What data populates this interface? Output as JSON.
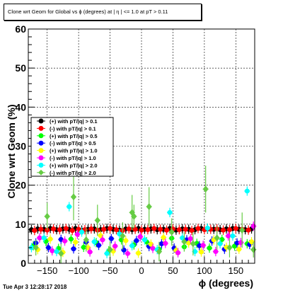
{
  "title": "Clone wrt Geom for Global vs ϕ (degrees) at | η | <= 1.0 at pT > 0.11",
  "timestamp": "Tue Apr  3 12:28:17 2018",
  "colors": {
    "black": "#000000",
    "red": "#ff0000",
    "green": "#00ff00",
    "blue": "#0000ff",
    "yellow": "#ffff00",
    "magenta": "#ff00ff",
    "cyan": "#00ffff",
    "olive": "#66cc44"
  },
  "chart_data": {
    "type": "scatter",
    "xlabel": "ϕ (degrees)",
    "ylabel": "Clone wrt Geom (%)",
    "xlim": [
      -180,
      180
    ],
    "ylim": [
      0,
      60
    ],
    "xticks": [
      -150,
      -100,
      -50,
      0,
      50,
      100,
      150
    ],
    "xtick_labels": [
      "−150",
      "−100",
      "−50",
      "0",
      "50",
      "100",
      "150"
    ],
    "yticks": [
      0,
      10,
      20,
      30,
      40,
      50,
      60
    ],
    "grid": true,
    "legend_position": "middle-left",
    "series": [
      {
        "name": "(+) with pT/|q| > 0.1",
        "color": "#000000",
        "marker": "circle",
        "x": [
          -175,
          -165,
          -155,
          -145,
          -135,
          -125,
          -115,
          -105,
          -95,
          -85,
          -75,
          -65,
          -55,
          -45,
          -35,
          -25,
          -15,
          -5,
          5,
          15,
          25,
          35,
          45,
          55,
          65,
          75,
          85,
          95,
          105,
          115,
          125,
          135,
          145,
          155,
          165,
          175
        ],
        "y": [
          8.6,
          8.8,
          8.7,
          8.9,
          8.6,
          8.8,
          8.7,
          8.9,
          8.5,
          8.7,
          8.8,
          8.6,
          8.9,
          8.7,
          8.5,
          8.8,
          8.6,
          8.9,
          8.7,
          8.8,
          8.6,
          8.7,
          8.9,
          8.5,
          8.8,
          8.7,
          8.6,
          8.9,
          8.8,
          8.7,
          8.6,
          8.8,
          8.9,
          8.7,
          8.6,
          8.8
        ]
      },
      {
        "name": "(-) with pT/|q| > 0.1",
        "color": "#ff0000",
        "marker": "circle",
        "x": [
          -170,
          -160,
          -150,
          -140,
          -130,
          -120,
          -110,
          -100,
          -90,
          -80,
          -70,
          -60,
          -50,
          -40,
          -30,
          -20,
          -10,
          0,
          10,
          20,
          30,
          40,
          50,
          60,
          70,
          80,
          90,
          100,
          110,
          120,
          130,
          140,
          150,
          160,
          170
        ],
        "y": [
          8.4,
          8.7,
          8.5,
          8.8,
          8.6,
          8.9,
          8.4,
          8.7,
          8.6,
          8.8,
          8.5,
          8.7,
          8.9,
          8.6,
          8.4,
          8.8,
          8.7,
          8.5,
          8.6,
          8.9,
          8.7,
          8.5,
          8.8,
          8.6,
          8.7,
          8.4,
          8.9,
          8.6,
          8.7,
          8.8,
          8.5,
          8.6,
          8.9,
          8.7,
          8.5
        ]
      },
      {
        "name": "(+) with pT/|q| > 0.5",
        "color": "#00ff00",
        "marker": "circle",
        "x": [
          -172,
          -152,
          -132,
          -112,
          -92,
          -72,
          -52,
          -32,
          -12,
          8,
          28,
          48,
          68,
          88,
          108,
          128,
          148,
          168
        ],
        "y": [
          4.5,
          5.6,
          3.8,
          6.2,
          4.1,
          5.3,
          3.2,
          6.0,
          4.7,
          5.5,
          3.6,
          6.4,
          4.2,
          5.1,
          3.9,
          6.1,
          4.4,
          5.0
        ]
      },
      {
        "name": "(-) with pT/|q| > 0.5",
        "color": "#0000ff",
        "marker": "circle",
        "x": [
          -168,
          -148,
          -128,
          -108,
          -88,
          -68,
          -48,
          -28,
          -8,
          12,
          32,
          52,
          72,
          92,
          112,
          132,
          152,
          172
        ],
        "y": [
          5.2,
          4.0,
          6.1,
          3.7,
          5.4,
          4.6,
          6.3,
          3.4,
          5.8,
          4.3,
          5.0,
          3.9,
          6.0,
          4.5,
          5.7,
          3.6,
          5.2,
          4.8
        ]
      },
      {
        "name": "(+) with pT/|q| > 1.0",
        "color": "#ffff00",
        "marker": "circle",
        "x": [
          -165,
          -145,
          -125,
          -105,
          -85,
          -65,
          -45,
          -25,
          -5,
          15,
          35,
          55,
          75,
          95,
          115,
          135,
          155,
          175
        ],
        "y": [
          3.5,
          6.2,
          2.8,
          5.4,
          4.0,
          7.1,
          3.1,
          5.8,
          2.6,
          4.9,
          6.6,
          3.3,
          5.2,
          2.9,
          6.0,
          4.1,
          3.6,
          5.5
        ]
      },
      {
        "name": "(-) with pT/|q| > 1.0",
        "color": "#ff00ff",
        "marker": "circle",
        "x": [
          -162,
          -142,
          -122,
          -102,
          -82,
          -62,
          -42,
          -22,
          -2,
          18,
          38,
          58,
          78,
          98,
          118,
          138,
          158,
          178
        ],
        "y": [
          6.5,
          3.2,
          5.7,
          7.4,
          2.9,
          6.0,
          4.4,
          2.5,
          6.8,
          3.8,
          5.1,
          2.7,
          6.3,
          4.6,
          3.0,
          7.0,
          5.3,
          9.5
        ]
      },
      {
        "name": "(+) with pT/|q| > 2.0",
        "color": "#00ffff",
        "marker": "circle",
        "x": [
          -175,
          -155,
          -135,
          -115,
          -95,
          -75,
          -55,
          -35,
          -15,
          5,
          25,
          45,
          65,
          85,
          105,
          125,
          145,
          168
        ],
        "y": [
          4.0,
          6.5,
          3.0,
          14.5,
          8.0,
          5.5,
          2.5,
          7.5,
          4.5,
          6.0,
          3.5,
          13.0,
          6.5,
          3.0,
          9.0,
          5.0,
          7.0,
          18.5
        ]
      },
      {
        "name": "(-) with pT/|q| > 2.0",
        "color": "#66cc44",
        "marker": "diamond",
        "x": [
          -168,
          -150,
          -128,
          -108,
          -88,
          -70,
          -50,
          -30,
          -12,
          -15,
          12,
          28,
          48,
          68,
          82,
          102,
          120,
          140,
          160,
          178
        ],
        "y": [
          4.0,
          12.0,
          2.5,
          17.0,
          6.0,
          11.0,
          3.5,
          7.0,
          12.0,
          13.0,
          14.5,
          3.0,
          8.0,
          5.5,
          5.0,
          19.0,
          6.5,
          4.0,
          8.5,
          3.5
        ],
        "errors": [
          2.0,
          3.5,
          2.5,
          6.0,
          3.0,
          4.0,
          2.0,
          3.5,
          3.0,
          4.5,
          5.0,
          2.5,
          3.5,
          2.5,
          3.0,
          6.0,
          3.0,
          2.5,
          4.5,
          2.0
        ]
      }
    ]
  }
}
